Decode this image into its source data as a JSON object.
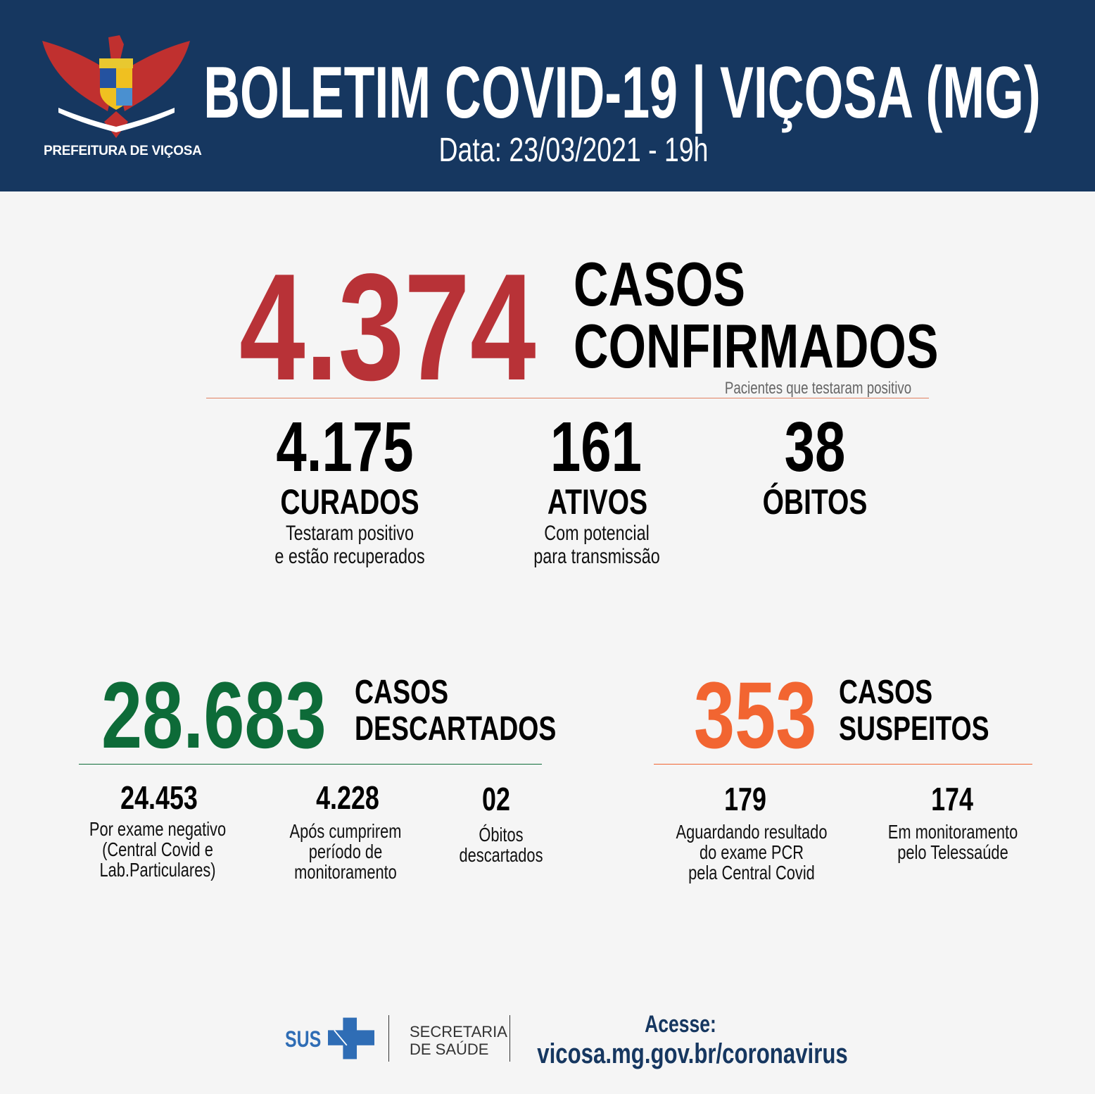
{
  "header": {
    "org": "PREFEITURA DE VIÇOSA",
    "title": "BOLETIM COVID-19 | VIÇOSA (MG)",
    "date": "Data: 23/03/2021 - 19h",
    "logo_icon": "coat-of-arms-eagle-icon"
  },
  "confirmed": {
    "value": "4.374",
    "label1": "CASOS",
    "label2": "CONFIRMADOS",
    "note": "Pacientes que testaram positivo",
    "color": "#b83237"
  },
  "stats": [
    {
      "value": "4.175",
      "label": "CURADOS",
      "desc1": "Testaram positivo",
      "desc2": "e estão recuperados"
    },
    {
      "value": "161",
      "label": "ATIVOS",
      "desc1": "Com potencial",
      "desc2": "para transmissão"
    },
    {
      "value": "38",
      "label": "ÓBITOS"
    }
  ],
  "discarded": {
    "value": "28.683",
    "label1": "CASOS",
    "label2": "DESCARTADOS",
    "color": "#0d6b38",
    "items": [
      {
        "value": "24.453",
        "lines": [
          "Por exame negativo",
          "(Central Covid e",
          "Lab.Particulares)"
        ]
      },
      {
        "value": "4.228",
        "lines": [
          "Após cumprirem",
          "período de",
          "monitoramento"
        ]
      },
      {
        "value": "02",
        "lines": [
          "Óbitos",
          "descartados"
        ]
      }
    ]
  },
  "suspected": {
    "value": "353",
    "label1": "CASOS",
    "label2": "SUSPEITOS",
    "color": "#f26531",
    "items": [
      {
        "value": "179",
        "lines": [
          "Aguardando resultado",
          "do exame PCR",
          "pela Central Covid"
        ]
      },
      {
        "value": "174",
        "lines": [
          "Em monitoramento",
          "pelo Telessaúde"
        ]
      }
    ]
  },
  "footer": {
    "sus": "SUS",
    "secretaria1": "SECRETARIA",
    "secretaria2": "DE SAÚDE",
    "access_label": "Acesse:",
    "url": "vicosa.mg.gov.br/coronavirus",
    "navy": "#163760",
    "sus_blue": "#2f6db5"
  }
}
